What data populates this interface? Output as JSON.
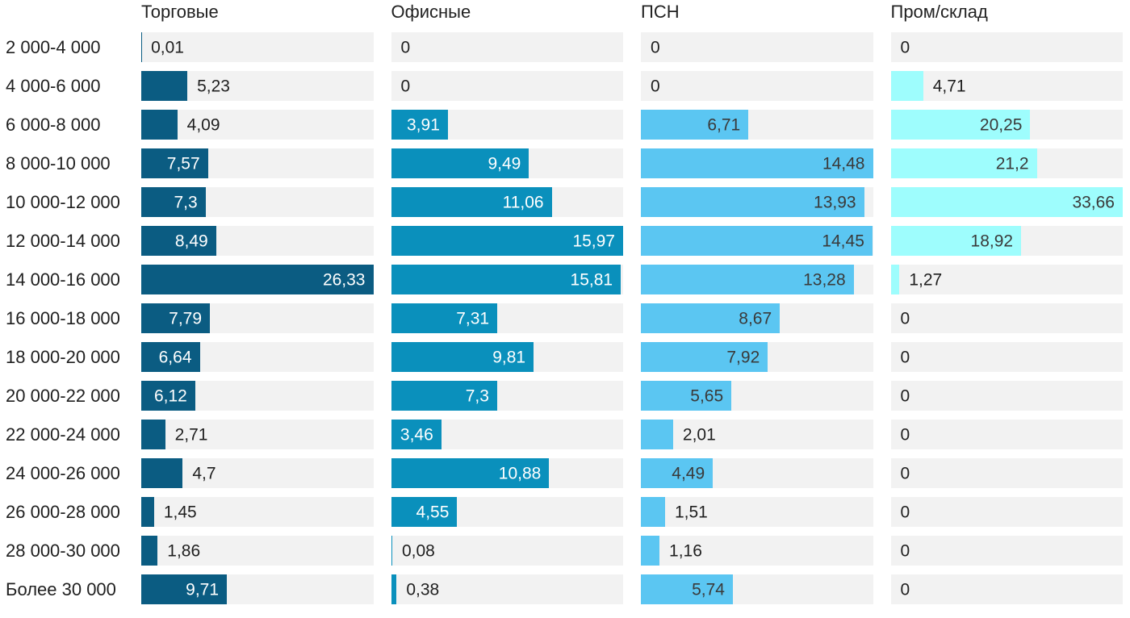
{
  "chart_data": {
    "type": "bar",
    "orientation": "horizontal",
    "note_layout": "4 side-by-side horizontal bar panels, each panel independently scaled so its max value fills the full track width; gray track background behind each bar; value labels inside bar when wide enough, otherwise to the right of the bar",
    "categories": [
      "2 000-4 000",
      "4 000-6 000",
      "6 000-8 000",
      "8 000-10 000",
      "10 000-12 000",
      "12 000-14 000",
      "14 000-16 000",
      "16 000-18 000",
      "18 000-20 000",
      "20 000-22 000",
      "22 000-24 000",
      "24 000-26 000",
      "26 000-28 000",
      "28 000-30 000",
      "Более 30 000"
    ],
    "series": [
      {
        "name": "Торговые",
        "color": "#0b5c82",
        "inside_text_color": "#ffffff",
        "values": [
          0.01,
          5.23,
          4.09,
          7.57,
          7.3,
          8.49,
          26.33,
          7.79,
          6.64,
          6.12,
          2.71,
          4.7,
          1.45,
          1.86,
          9.71
        ],
        "labels": [
          "0,01",
          "5,23",
          "4,09",
          "7,57",
          "7,3",
          "8,49",
          "26,33",
          "7,79",
          "6,64",
          "6,12",
          "2,71",
          "4,7",
          "1,45",
          "1,86",
          "9,71"
        ]
      },
      {
        "name": "Офисные",
        "color": "#0a90bc",
        "inside_text_color": "#ffffff",
        "values": [
          0,
          0,
          3.91,
          9.49,
          11.06,
          15.97,
          15.81,
          7.31,
          9.81,
          7.3,
          3.46,
          10.88,
          4.55,
          0.08,
          0.38
        ],
        "labels": [
          "0",
          "0",
          "3,91",
          "9,49",
          "11,06",
          "15,97",
          "15,81",
          "7,31",
          "9,81",
          "7,3",
          "3,46",
          "10,88",
          "4,55",
          "0,08",
          "0,38"
        ]
      },
      {
        "name": "ПСН",
        "color": "#5bc6f2",
        "inside_text_color": "#3a3a3a",
        "values": [
          0,
          0,
          6.71,
          14.48,
          13.93,
          14.45,
          13.28,
          8.67,
          7.92,
          5.65,
          2.01,
          4.49,
          1.51,
          1.16,
          5.74
        ],
        "labels": [
          "0",
          "0",
          "6,71",
          "14,48",
          "13,93",
          "14,45",
          "13,28",
          "8,67",
          "7,92",
          "5,65",
          "2,01",
          "4,49",
          "1,51",
          "1,16",
          "5,74"
        ]
      },
      {
        "name": "Пром/склад",
        "color": "#9efdfd",
        "inside_text_color": "#3a3a3a",
        "values": [
          0,
          4.71,
          20.25,
          21.2,
          33.66,
          18.92,
          1.27,
          0,
          0,
          0,
          0,
          0,
          0,
          0,
          0
        ],
        "labels": [
          "0",
          "4,71",
          "20,25",
          "21,2",
          "33,66",
          "18,92",
          "1,27",
          "0",
          "0",
          "0",
          "0",
          "0",
          "0",
          "0",
          "0"
        ]
      }
    ],
    "track_color": "#f2f2f2",
    "outside_text_color": "#1f1f1f",
    "grid": false,
    "legend_position": "column headers on top"
  }
}
